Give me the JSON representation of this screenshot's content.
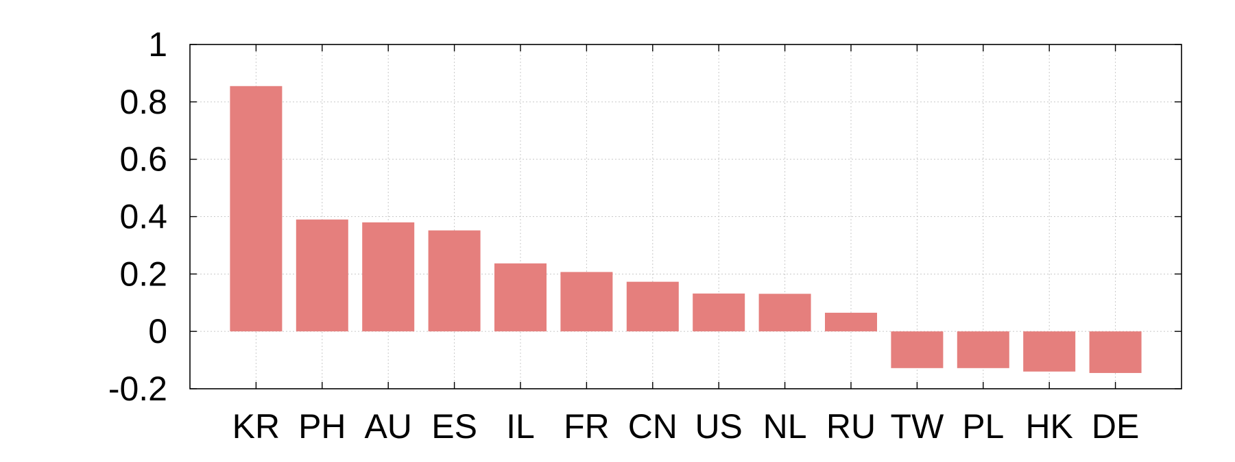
{
  "chart_data": {
    "type": "bar",
    "categories": [
      "KR",
      "PH",
      "AU",
      "ES",
      "IL",
      "FR",
      "CN",
      "US",
      "NL",
      "RU",
      "TW",
      "PL",
      "HK",
      "DE"
    ],
    "values": [
      0.855,
      0.39,
      0.38,
      0.352,
      0.237,
      0.207,
      0.173,
      0.132,
      0.131,
      0.065,
      -0.128,
      -0.128,
      -0.14,
      -0.145
    ],
    "ylim": [
      -0.2,
      1
    ],
    "yticks": [
      -0.2,
      0,
      0.2,
      0.4,
      0.6,
      0.8,
      1
    ],
    "ytick_labels": [
      "-0.2",
      "0",
      "0.2",
      "0.4",
      "0.6",
      "0.8",
      "1"
    ],
    "grid": true,
    "bar_color": "#e57f7d",
    "title": "",
    "xlabel": "",
    "ylabel": ""
  }
}
